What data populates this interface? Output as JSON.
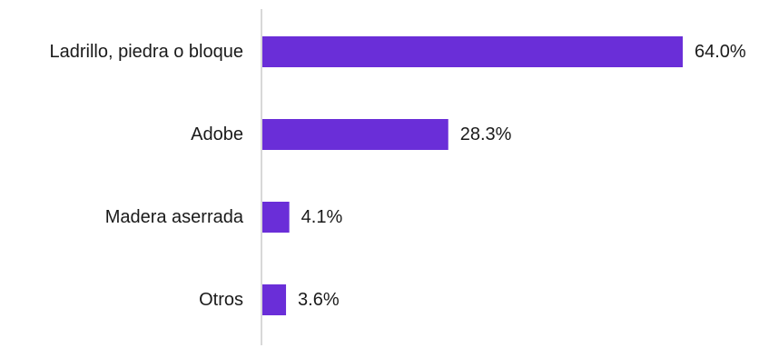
{
  "chart_data": {
    "type": "bar",
    "orientation": "horizontal",
    "categories": [
      "Ladrillo, piedra o bloque",
      "Adobe",
      "Madera aserrada",
      "Otros"
    ],
    "values": [
      64.0,
      28.3,
      4.1,
      3.6
    ],
    "value_labels": [
      "64.0%",
      "28.3%",
      "4.1%",
      "3.6%"
    ],
    "xlim": [
      0,
      64.0
    ],
    "grid": false,
    "legend": "none",
    "bar_color": "#6a2ed8",
    "axis_color": "#cccccc"
  }
}
